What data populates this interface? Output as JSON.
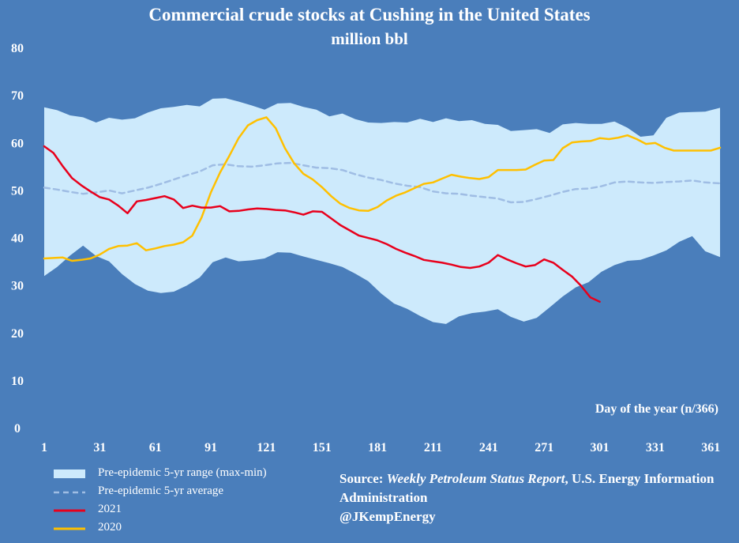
{
  "title": "Commercial crude stocks at Cushing in the United States",
  "subtitle": "million bbl",
  "source": {
    "prefix": "Source: ",
    "publication": "Weekly Petroleum Status Report",
    "rest": ", U.S. Energy Information Administration",
    "handle": "@JKempEnergy"
  },
  "colors": {
    "background": "#4a7ebb",
    "range_fill": "#cdeafc",
    "average": "#9fbde4",
    "y2021": "#e8001c",
    "y2020": "#ffc000"
  },
  "chart_data": {
    "type": "line",
    "title": "Commercial crude stocks at Cushing in the United States",
    "subtitle": "million bbl",
    "xlabel": "Day of the year (n/366)",
    "ylabel": "",
    "xlim": [
      1,
      366
    ],
    "ylim": [
      0,
      80
    ],
    "x_ticks": [
      1,
      31,
      61,
      91,
      121,
      151,
      181,
      211,
      241,
      271,
      301,
      331,
      361
    ],
    "y_ticks": [
      0,
      10,
      20,
      30,
      40,
      50,
      60,
      70,
      80
    ],
    "grid": false,
    "legend_position": "bottom-left",
    "series": [
      {
        "name": "Pre-epidemic 5-yr range (max-min)",
        "kind": "range",
        "x": [
          1,
          8,
          15,
          22,
          29,
          36,
          43,
          50,
          57,
          64,
          71,
          78,
          85,
          92,
          99,
          106,
          113,
          120,
          127,
          134,
          141,
          148,
          155,
          162,
          169,
          176,
          183,
          190,
          197,
          204,
          211,
          218,
          225,
          232,
          239,
          246,
          253,
          260,
          267,
          274,
          281,
          288,
          295,
          302,
          309,
          316,
          323,
          330,
          337,
          344,
          351,
          358,
          366
        ],
        "upper": [
          67.4,
          66.8,
          65.7,
          65.3,
          64.2,
          65.2,
          64.8,
          65.1,
          66.3,
          67.2,
          67.5,
          67.9,
          67.6,
          69.2,
          69.3,
          68.6,
          67.8,
          66.9,
          68.2,
          68.3,
          67.5,
          66.9,
          65.5,
          66.1,
          64.9,
          64.2,
          64.1,
          64.3,
          64.2,
          65.0,
          64.3,
          65.1,
          64.5,
          64.7,
          63.9,
          63.7,
          62.4,
          62.6,
          62.8,
          62.0,
          63.8,
          64.1,
          63.9,
          63.9,
          64.4,
          63.1,
          61.2,
          61.5,
          65.2,
          66.3,
          66.4,
          66.5,
          67.3
        ],
        "lower": [
          31.9,
          33.8,
          36.2,
          38.3,
          36.1,
          35.0,
          32.3,
          30.2,
          28.8,
          28.3,
          28.6,
          29.9,
          31.6,
          34.8,
          35.8,
          35.0,
          35.2,
          35.6,
          36.9,
          36.8,
          36.0,
          35.3,
          34.6,
          33.8,
          32.4,
          30.8,
          28.2,
          26.1,
          25.0,
          23.5,
          22.2,
          21.8,
          23.4,
          24.1,
          24.4,
          24.9,
          23.3,
          22.3,
          23.1,
          25.3,
          27.6,
          29.5,
          30.6,
          32.8,
          34.2,
          35.1,
          35.3,
          36.2,
          37.3,
          39.1,
          40.3,
          37.1,
          35.9
        ]
      },
      {
        "name": "Pre-epidemic 5-yr average",
        "kind": "dashed",
        "x": [
          1,
          8,
          15,
          22,
          29,
          36,
          43,
          50,
          57,
          64,
          71,
          78,
          85,
          92,
          99,
          106,
          113,
          120,
          127,
          134,
          141,
          148,
          155,
          162,
          169,
          176,
          183,
          190,
          197,
          204,
          211,
          218,
          225,
          232,
          239,
          246,
          253,
          260,
          267,
          274,
          281,
          288,
          295,
          302,
          309,
          316,
          323,
          330,
          337,
          344,
          351,
          358,
          366
        ],
        "values": [
          50.5,
          50.1,
          49.6,
          49.2,
          49.5,
          49.9,
          49.3,
          49.9,
          50.5,
          51.3,
          52.2,
          53.1,
          53.9,
          55.2,
          55.4,
          55.0,
          54.9,
          55.2,
          55.6,
          55.7,
          55.2,
          54.7,
          54.6,
          54.2,
          53.3,
          52.6,
          52.1,
          51.4,
          50.9,
          50.6,
          49.7,
          49.3,
          49.2,
          48.8,
          48.5,
          48.2,
          47.4,
          47.5,
          48.1,
          48.8,
          49.6,
          50.2,
          50.3,
          50.8,
          51.6,
          51.8,
          51.6,
          51.5,
          51.7,
          51.8,
          52.0,
          51.6,
          51.4
        ]
      },
      {
        "name": "2021",
        "kind": "line",
        "x": [
          1,
          6,
          11,
          16,
          21,
          26,
          31,
          36,
          41,
          46,
          51,
          56,
          61,
          66,
          71,
          76,
          81,
          86,
          91,
          96,
          101,
          106,
          111,
          116,
          121,
          126,
          131,
          136,
          141,
          146,
          151,
          156,
          161,
          166,
          171,
          176,
          181,
          186,
          191,
          196,
          201,
          206,
          211,
          216,
          221,
          226,
          231,
          236,
          241,
          246,
          251,
          256,
          261,
          266,
          271,
          276,
          281,
          286,
          291,
          296,
          301
        ],
        "values": [
          59.2,
          57.8,
          55.0,
          52.5,
          51.0,
          49.7,
          48.5,
          48.0,
          46.7,
          45.1,
          47.6,
          47.9,
          48.3,
          48.7,
          48.0,
          46.2,
          46.7,
          46.3,
          46.3,
          46.6,
          45.5,
          45.6,
          45.9,
          46.1,
          46.0,
          45.8,
          45.7,
          45.3,
          44.8,
          45.5,
          45.4,
          44.0,
          42.6,
          41.5,
          40.4,
          39.9,
          39.4,
          38.6,
          37.6,
          36.8,
          36.1,
          35.3,
          35.0,
          34.7,
          34.3,
          33.8,
          33.6,
          33.9,
          34.7,
          36.3,
          35.4,
          34.6,
          33.9,
          34.2,
          35.4,
          34.7,
          33.2,
          31.8,
          29.8,
          27.4,
          26.5
        ]
      },
      {
        "name": "2020",
        "kind": "line",
        "x": [
          1,
          6,
          11,
          16,
          21,
          26,
          31,
          36,
          41,
          46,
          51,
          56,
          61,
          66,
          71,
          76,
          81,
          86,
          91,
          96,
          101,
          106,
          111,
          116,
          121,
          126,
          131,
          136,
          141,
          146,
          151,
          156,
          161,
          166,
          171,
          176,
          181,
          186,
          191,
          196,
          201,
          206,
          211,
          216,
          221,
          226,
          231,
          236,
          241,
          246,
          251,
          256,
          261,
          266,
          271,
          276,
          281,
          286,
          291,
          296,
          301,
          306,
          311,
          316,
          321,
          326,
          331,
          336,
          341,
          346,
          351,
          356,
          361,
          366
        ],
        "values": [
          35.6,
          35.7,
          35.8,
          35.1,
          35.3,
          35.6,
          36.4,
          37.6,
          38.2,
          38.3,
          38.8,
          37.3,
          37.7,
          38.2,
          38.5,
          39.0,
          40.4,
          44.2,
          49.5,
          53.7,
          57.2,
          60.9,
          63.6,
          64.7,
          65.3,
          63.0,
          58.8,
          55.6,
          53.4,
          52.2,
          50.6,
          48.7,
          47.1,
          46.2,
          45.7,
          45.6,
          46.4,
          47.8,
          48.8,
          49.5,
          50.4,
          51.3,
          51.6,
          52.4,
          53.2,
          52.8,
          52.5,
          52.3,
          52.7,
          54.2,
          54.2,
          54.2,
          54.3,
          55.3,
          56.2,
          56.3,
          58.8,
          60.0,
          60.2,
          60.3,
          60.9,
          60.7,
          61.0,
          61.5,
          60.7,
          59.7,
          59.9,
          58.9,
          58.3,
          58.3,
          58.3,
          58.3,
          58.3,
          58.9
        ]
      }
    ]
  }
}
